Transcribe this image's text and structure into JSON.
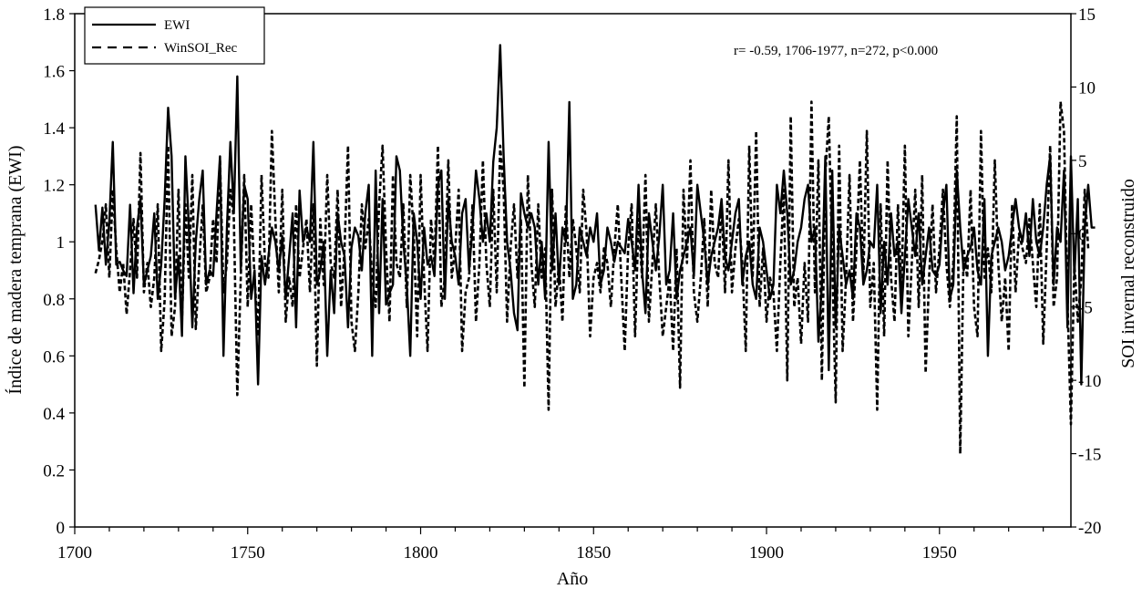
{
  "chart_data": {
    "type": "line",
    "xlabel": "Año",
    "ylabel_left": "Índice de madera temprana (EWI)",
    "ylabel_right": "SOI invernal reconstruido",
    "annotation": "r= -0.59, 1706-1977, n=272, p<0.000",
    "legend_position": "top-left",
    "grid": false,
    "xlim": [
      1700,
      1988
    ],
    "ylim_left": [
      0,
      1.8
    ],
    "ylim_right": [
      -20,
      15
    ],
    "x_ticks": [
      1700,
      1750,
      1800,
      1850,
      1900,
      1950
    ],
    "y_ticks_left": [
      0,
      0.2,
      0.4,
      0.6,
      0.8,
      1,
      1.2,
      1.4,
      1.6,
      1.8
    ],
    "y_ticks_right": [
      -20,
      -15,
      -10,
      -5,
      0,
      5,
      10,
      15
    ],
    "series": [
      {
        "name": "EWI",
        "axis": "left",
        "style": "solid",
        "x_start": 1706,
        "values": [
          1.13,
          0.97,
          1.12,
          0.92,
          1.07,
          1.35,
          0.92,
          0.93,
          0.9,
          0.88,
          1.13,
          0.82,
          1.05,
          1.15,
          0.85,
          0.9,
          0.95,
          1.1,
          0.8,
          0.92,
          1.15,
          1.47,
          1.3,
          0.8,
          0.95,
          0.67,
          1.3,
          1.05,
          0.7,
          1.0,
          1.15,
          1.25,
          0.85,
          0.9,
          0.88,
          1.1,
          1.3,
          0.6,
          1.05,
          1.35,
          1.1,
          1.58,
          0.9,
          1.2,
          1.15,
          0.8,
          0.9,
          0.5,
          0.95,
          0.85,
          0.95,
          1.05,
          1.0,
          0.9,
          1.02,
          0.8,
          0.95,
          1.1,
          0.7,
          1.18,
          1.0,
          1.05,
          1.0,
          1.35,
          0.85,
          0.9,
          1.0,
          0.6,
          0.9,
          0.75,
          1.1,
          1.0,
          0.95,
          0.7,
          0.98,
          1.05,
          1.02,
          0.9,
          1.1,
          1.2,
          0.6,
          1.25,
          0.75,
          1.15,
          0.78,
          0.82,
          0.85,
          1.3,
          1.25,
          1.0,
          0.85,
          0.6,
          1.1,
          1.0,
          0.8,
          1.05,
          0.92,
          0.95,
          0.88,
          1.2,
          1.25,
          0.8,
          1.15,
          1.0,
          0.95,
          0.85,
          1.1,
          1.15,
          0.9,
          1.05,
          1.25,
          1.15,
          1.0,
          1.1,
          1.0,
          1.28,
          1.4,
          1.69,
          1.3,
          1.0,
          0.9,
          0.75,
          0.69,
          1.17,
          1.1,
          1.05,
          1.1,
          1.05,
          0.85,
          1.0,
          0.8,
          1.35,
          0.9,
          1.1,
          0.85,
          1.05,
          1.0,
          1.49,
          0.8,
          0.85,
          1.05,
          1.0,
          0.95,
          1.05,
          1.0,
          1.1,
          0.85,
          0.9,
          1.05,
          1.0,
          0.93,
          1.0,
          0.98,
          0.96,
          1.08,
          1.0,
          0.9,
          1.2,
          0.9,
          0.75,
          1.1,
          1.0,
          0.9,
          1.02,
          1.2,
          0.85,
          0.9,
          1.1,
          0.8,
          0.9,
          0.95,
          1.0,
          1.05,
          0.88,
          1.2,
          1.1,
          1.0,
          0.85,
          0.95,
          1.0,
          1.05,
          1.15,
          0.95,
          0.9,
          1.0,
          1.1,
          1.15,
          0.85,
          0.95,
          1.0,
          0.85,
          0.8,
          1.05,
          1.0,
          0.9,
          0.8,
          0.85,
          1.2,
          1.1,
          1.25,
          1.1,
          0.85,
          0.9,
          1.0,
          1.05,
          1.15,
          1.2,
          1.0,
          1.05,
          0.65,
          0.85,
          1.3,
          0.55,
          1.25,
          0.7,
          1.05,
          0.95,
          0.85,
          0.9,
          0.8,
          1.1,
          1.05,
          0.85,
          0.9,
          1.0,
          0.98,
          1.2,
          0.75,
          1.0,
          0.85,
          1.1,
          0.95,
          1.0,
          0.75,
          0.95,
          1.15,
          1.05,
          0.95,
          1.1,
          0.85,
          0.95,
          1.05,
          0.9,
          0.88,
          0.92,
          1.1,
          1.2,
          0.8,
          0.85,
          1.25,
          1.05,
          0.9,
          0.95,
          0.98,
          1.05,
          0.9,
          0.85,
          1.15,
          0.6,
          0.95,
          1.0,
          1.05,
          1.0,
          0.9,
          0.95,
          1.05,
          1.15,
          1.05,
          1.0,
          1.1,
          0.95,
          1.15,
          1.0,
          0.95,
          1.05,
          1.2,
          1.3,
          0.85,
          1.05,
          1.0,
          1.25,
          0.7,
          1.3,
          0.88,
          1.15,
          0.5,
          1.05,
          1.2,
          1.05,
          1.05
        ]
      },
      {
        "name": "WinSOI_Rec",
        "axis": "right",
        "style": "dashed",
        "x_start": 1706,
        "values": [
          -2.7,
          -1.8,
          -0.5,
          2.0,
          -3.0,
          3.0,
          -1.0,
          -4.0,
          -2.0,
          -5.5,
          -2.5,
          1.0,
          -3.0,
          5.5,
          -4.0,
          -2.0,
          -5.0,
          -3.0,
          2.0,
          -8.0,
          -4.5,
          6.0,
          -7.0,
          -5.0,
          3.0,
          -6.0,
          2.0,
          -3.0,
          4.0,
          -6.5,
          -2.0,
          2.0,
          -4.0,
          -3.0,
          1.0,
          -2.0,
          5.0,
          -4.0,
          -2.0,
          3.0,
          1.0,
          -11.0,
          -3.0,
          4.0,
          -5.0,
          2.0,
          -3.0,
          -7.0,
          4.0,
          -2.0,
          -3.0,
          7.0,
          1.0,
          -4.0,
          3.0,
          -6.0,
          -3.0,
          -5.0,
          2.0,
          -3.0,
          -1.0,
          1.0,
          -4.0,
          2.0,
          -9.0,
          1.0,
          -3.5,
          4.0,
          -2.0,
          -3.0,
          3.0,
          -5.0,
          -1.0,
          6.0,
          -6.0,
          -8.0,
          -4.0,
          2.0,
          -1.0,
          1.0,
          -3.0,
          -5.0,
          2.0,
          6.0,
          -1.0,
          -6.0,
          4.0,
          -2.0,
          -3.0,
          2.0,
          -5.0,
          4.0,
          0.0,
          -7.0,
          4.0,
          -3.0,
          -8.0,
          1.0,
          -2.0,
          6.0,
          -5.0,
          -3.0,
          5.0,
          -3.0,
          -1.0,
          3.0,
          -8.0,
          -4.0,
          -3.0,
          2.0,
          -6.0,
          -2.0,
          5.0,
          -2.0,
          -5.0,
          3.0,
          -4.0,
          6.0,
          3.0,
          -6.0,
          -1.0,
          2.0,
          -3.0,
          1.0,
          -10.5,
          4.0,
          -2.0,
          -5.0,
          2.0,
          -3.0,
          -1.0,
          -12.0,
          3.0,
          -5.0,
          -2.0,
          -6.0,
          2.0,
          -3.0,
          1.0,
          -1.0,
          -4.0,
          3.0,
          0.0,
          -7.0,
          -3.0,
          -2.0,
          -4.0,
          -1.0,
          -2.0,
          -5.0,
          -1.0,
          2.0,
          -3.0,
          -8.0,
          -1.0,
          2.0,
          -7.0,
          1.0,
          -3.0,
          4.0,
          -6.0,
          -2.0,
          2.0,
          -3.0,
          -7.0,
          -5.0,
          -3.0,
          -8.0,
          -1.0,
          -10.5,
          3.0,
          -2.0,
          5.0,
          -4.0,
          -6.0,
          -3.0,
          1.0,
          -5.0,
          3.0,
          -2.0,
          -3.0,
          2.0,
          -4.0,
          5.0,
          -4.0,
          -1.0,
          1.0,
          -2.0,
          -8.0,
          6.0,
          -3.0,
          7.0,
          -5.0,
          -1.0,
          -6.0,
          -3.0,
          -4.0,
          -8.0,
          -2.0,
          3.0,
          -10.0,
          8.0,
          -5.0,
          -3.0,
          -7.5,
          -2.0,
          -6.0,
          9.0,
          -4.0,
          5.0,
          -10.0,
          4.0,
          8.0,
          -2.0,
          -11.5,
          6.0,
          -8.0,
          -3.0,
          4.0,
          -6.0,
          -1.0,
          5.0,
          -3.0,
          7.0,
          -5.0,
          -2.0,
          -12.0,
          2.0,
          -7.0,
          5.0,
          -3.0,
          -6.0,
          2.0,
          -4.0,
          6.0,
          -7.0,
          -2.0,
          3.0,
          -5.0,
          4.0,
          -9.5,
          -3.0,
          2.0,
          -4.0,
          -1.0,
          3.0,
          -2.0,
          -5.0,
          -2.0,
          8.0,
          -15.0,
          -1.0,
          -3.0,
          3.0,
          -5.0,
          -7.0,
          7.0,
          -3.0,
          -1.0,
          -4.0,
          5.0,
          -2.0,
          -6.0,
          -3.0,
          -8.0,
          2.0,
          -4.0,
          0.0,
          -1.0,
          -2.0,
          1.0,
          -2.0,
          -5.0,
          2.0,
          -7.5,
          -1.0,
          6.0,
          -5.0,
          -3.0,
          9.0,
          7.0,
          -4.5,
          -13.0,
          -2.0,
          -6.0,
          -3.0,
          3.0,
          -1.0
        ]
      }
    ]
  }
}
